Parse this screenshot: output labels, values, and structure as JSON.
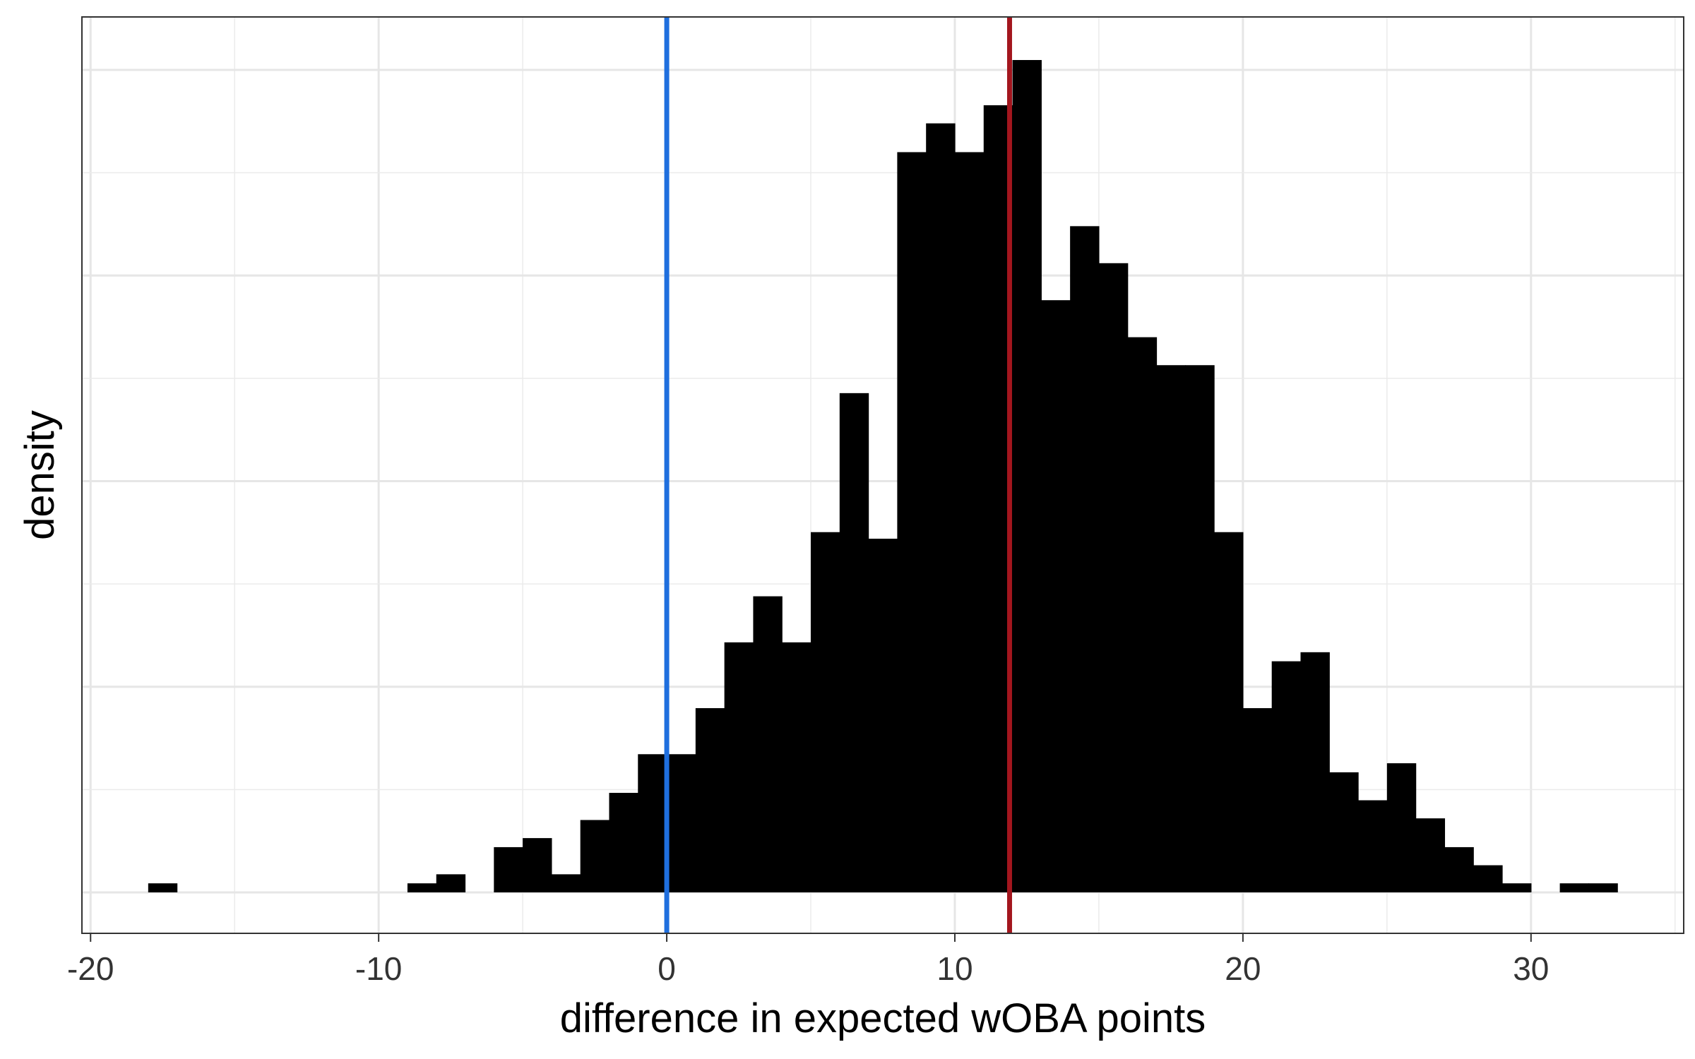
{
  "chart_data": {
    "type": "bar",
    "xlabel": "difference in expected wOBA points",
    "ylabel": "density",
    "xlim": [
      -20.3,
      35.3
    ],
    "ylim": [
      0,
      1.05
    ],
    "x_ticks": [
      -20,
      -10,
      0,
      10,
      20,
      30
    ],
    "x_tick_labels": [
      "-20",
      "-10",
      "0",
      "10",
      "20",
      "30"
    ],
    "y_tick_labels_shown": false,
    "grid": true,
    "bin_width": 1,
    "bins": [
      {
        "x0": -18,
        "x1": -17,
        "value": 0.011
      },
      {
        "x0": -9,
        "x1": -8,
        "value": 0.011
      },
      {
        "x0": -8,
        "x1": -7,
        "value": 0.022
      },
      {
        "x0": -6,
        "x1": -5,
        "value": 0.055
      },
      {
        "x0": -5,
        "x1": -4,
        "value": 0.066
      },
      {
        "x0": -4,
        "x1": -3,
        "value": 0.022
      },
      {
        "x0": -3,
        "x1": -2,
        "value": 0.088
      },
      {
        "x0": -2,
        "x1": -1,
        "value": 0.121
      },
      {
        "x0": -1,
        "x1": 0,
        "value": 0.168
      },
      {
        "x0": 0,
        "x1": 1,
        "value": 0.168
      },
      {
        "x0": 1,
        "x1": 2,
        "value": 0.224
      },
      {
        "x0": 2,
        "x1": 3,
        "value": 0.304
      },
      {
        "x0": 3,
        "x1": 4,
        "value": 0.36
      },
      {
        "x0": 4,
        "x1": 5,
        "value": 0.304
      },
      {
        "x0": 5,
        "x1": 6,
        "value": 0.438
      },
      {
        "x0": 6,
        "x1": 7,
        "value": 0.607
      },
      {
        "x0": 7,
        "x1": 8,
        "value": 0.43
      },
      {
        "x0": 8,
        "x1": 9,
        "value": 0.9
      },
      {
        "x0": 9,
        "x1": 10,
        "value": 0.935
      },
      {
        "x0": 10,
        "x1": 11,
        "value": 0.9
      },
      {
        "x0": 11,
        "x1": 12,
        "value": 0.957
      },
      {
        "x0": 12,
        "x1": 13,
        "value": 1.012
      },
      {
        "x0": 13,
        "x1": 14,
        "value": 0.72
      },
      {
        "x0": 14,
        "x1": 15,
        "value": 0.81
      },
      {
        "x0": 15,
        "x1": 16,
        "value": 0.765
      },
      {
        "x0": 16,
        "x1": 17,
        "value": 0.675
      },
      {
        "x0": 17,
        "x1": 18,
        "value": 0.641
      },
      {
        "x0": 18,
        "x1": 19,
        "value": 0.641
      },
      {
        "x0": 19,
        "x1": 20,
        "value": 0.438
      },
      {
        "x0": 20,
        "x1": 21,
        "value": 0.224
      },
      {
        "x0": 21,
        "x1": 22,
        "value": 0.281
      },
      {
        "x0": 22,
        "x1": 23,
        "value": 0.292
      },
      {
        "x0": 23,
        "x1": 24,
        "value": 0.146
      },
      {
        "x0": 24,
        "x1": 25,
        "value": 0.112
      },
      {
        "x0": 25,
        "x1": 26,
        "value": 0.157
      },
      {
        "x0": 26,
        "x1": 27,
        "value": 0.09
      },
      {
        "x0": 27,
        "x1": 28,
        "value": 0.055
      },
      {
        "x0": 28,
        "x1": 29,
        "value": 0.033
      },
      {
        "x0": 29,
        "x1": 30,
        "value": 0.011
      },
      {
        "x0": 31,
        "x1": 32,
        "value": 0.011
      },
      {
        "x0": 32,
        "x1": 33,
        "value": 0.011
      }
    ],
    "reference_lines": [
      {
        "x": 0,
        "color": "#1f6fde"
      },
      {
        "x": 11.9,
        "color": "#a3161e"
      }
    ],
    "bar_color": "#000000"
  }
}
